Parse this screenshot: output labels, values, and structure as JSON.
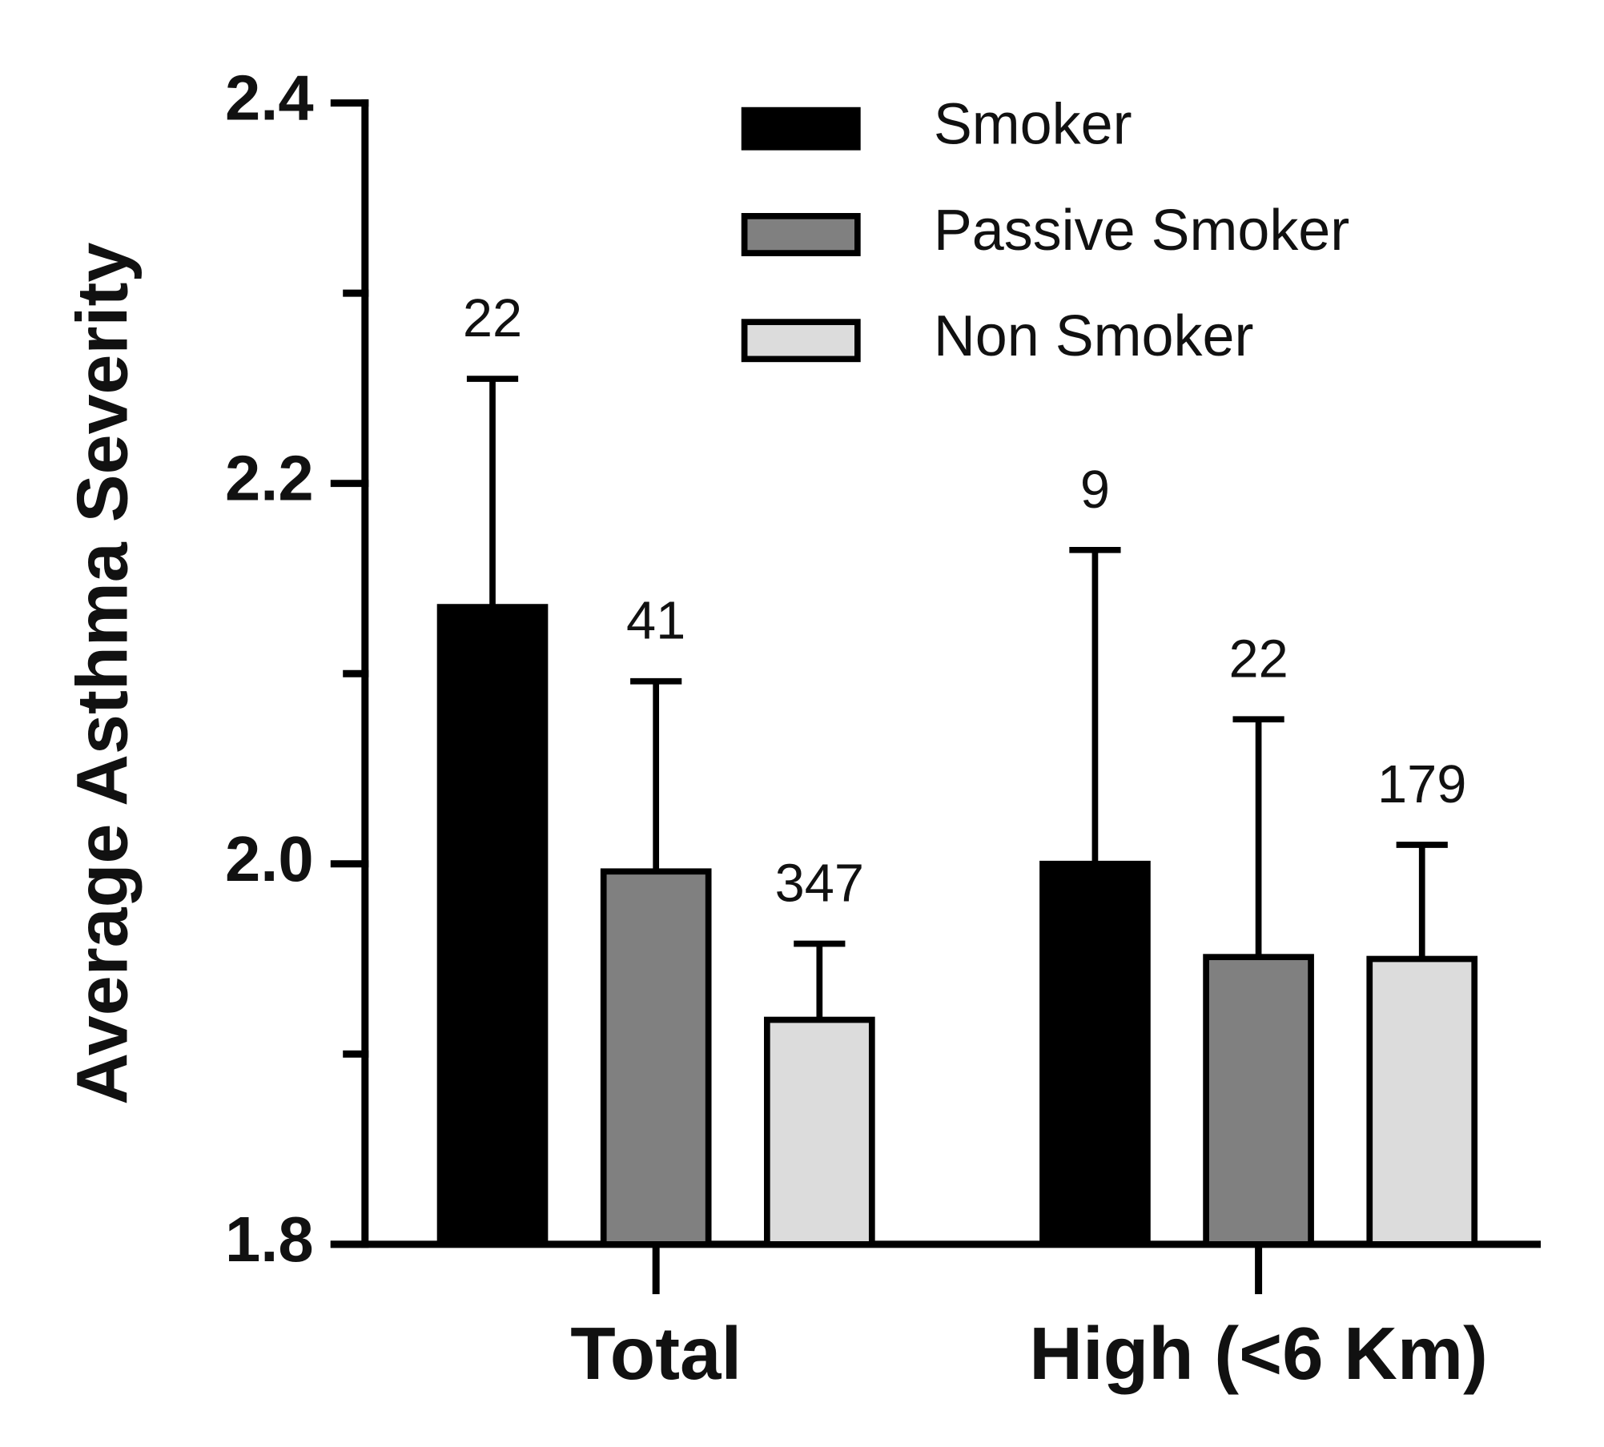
{
  "chart_data": {
    "type": "bar",
    "ylabel": "Average Asthma Severity",
    "categories": [
      "Total",
      "High (<6 Km)"
    ],
    "series": [
      {
        "name": "Smoker",
        "color": "#000000",
        "values": [
          2.135,
          2.0
        ],
        "errors": [
          0.12,
          0.165
        ],
        "sample_sizes": [
          22,
          9
        ]
      },
      {
        "name": "Passive Smoker",
        "color": "#808080",
        "values": [
          1.996,
          1.951
        ],
        "errors": [
          0.1,
          0.125
        ],
        "sample_sizes": [
          41,
          22
        ]
      },
      {
        "name": "Non Smoker",
        "color": "#dcdcdc",
        "values": [
          1.918,
          1.95
        ],
        "errors": [
          0.04,
          0.06
        ],
        "sample_sizes": [
          347,
          179
        ]
      }
    ],
    "ylim": [
      1.8,
      2.4
    ],
    "yticks": [
      1.8,
      {
        "value": 2,
        "label": "2.0"
      },
      2.2,
      2.4
    ],
    "minor_yticks": [
      1.9,
      2.1,
      2.3
    ],
    "legend": "upper right"
  }
}
